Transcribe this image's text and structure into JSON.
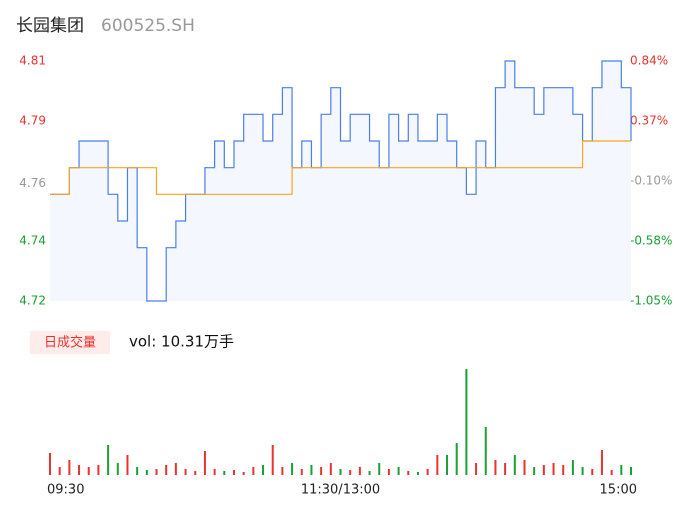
{
  "chart_data": [
    {
      "type": "line",
      "title": "长园集团",
      "subtitle": "600525.SH",
      "categories": [
        "09:30",
        null,
        null,
        null,
        null,
        null,
        null,
        null,
        null,
        null,
        null,
        null,
        null,
        null,
        null,
        null,
        null,
        null,
        null,
        null,
        null,
        null,
        null,
        null,
        null,
        null,
        null,
        null,
        null,
        null,
        "11:30/13:00",
        null,
        null,
        null,
        null,
        null,
        null,
        null,
        null,
        null,
        null,
        null,
        null,
        null,
        null,
        null,
        null,
        null,
        null,
        null,
        null,
        null,
        null,
        null,
        null,
        null,
        null,
        null,
        null,
        null,
        "15:00"
      ],
      "series": [
        {
          "color": "#4a7fe8",
          "values": [
            4.76,
            4.76,
            4.77,
            4.78,
            4.78,
            4.78,
            4.76,
            4.75,
            4.77,
            4.74,
            4.72,
            4.72,
            4.74,
            4.75,
            4.76,
            4.76,
            4.77,
            4.78,
            4.77,
            4.78,
            4.79,
            4.79,
            4.78,
            4.79,
            4.8,
            4.77,
            4.78,
            4.77,
            4.79,
            4.8,
            4.78,
            4.79,
            4.79,
            4.78,
            4.77,
            4.79,
            4.78,
            4.79,
            4.78,
            4.78,
            4.79,
            4.78,
            4.77,
            4.76,
            4.78,
            4.77,
            4.8,
            4.81,
            4.8,
            4.8,
            4.79,
            4.8,
            4.8,
            4.8,
            4.79,
            4.78,
            4.8,
            4.81,
            4.81,
            4.8,
            4.78
          ]
        },
        {
          "color": "#f5a623",
          "values": [
            4.76,
            4.76,
            4.77,
            4.77,
            4.77,
            4.77,
            4.77,
            4.77,
            4.77,
            4.77,
            4.77,
            4.76,
            4.76,
            4.76,
            4.76,
            4.76,
            4.76,
            4.76,
            4.76,
            4.76,
            4.76,
            4.76,
            4.76,
            4.76,
            4.76,
            4.77,
            4.77,
            4.77,
            4.77,
            4.77,
            4.77,
            4.77,
            4.77,
            4.77,
            4.77,
            4.77,
            4.77,
            4.77,
            4.77,
            4.77,
            4.77,
            4.77,
            4.77,
            4.77,
            4.77,
            4.77,
            4.77,
            4.77,
            4.77,
            4.77,
            4.77,
            4.77,
            4.77,
            4.77,
            4.77,
            4.78,
            4.78,
            4.78,
            4.78,
            4.78,
            4.78
          ]
        }
      ],
      "ylim": [
        4.72,
        4.81
      ],
      "yticks": [
        {
          "value": 4.81,
          "label": "4.81"
        },
        {
          "value": 4.7875,
          "label": "4.79"
        },
        {
          "value": 4.764,
          "label": "4.76"
        },
        {
          "value": 4.7425,
          "label": "4.74"
        },
        {
          "value": 4.72,
          "label": "4.72"
        }
      ],
      "y2lim": [
        -1.05,
        0.84
      ],
      "y2ticks": [
        {
          "value": 0.84,
          "label": "0.84%"
        },
        {
          "value": 0.3675,
          "label": "0.37%"
        },
        {
          "value": -0.105,
          "label": "-0.10%"
        },
        {
          "value": -0.5775,
          "label": "-0.58%"
        },
        {
          "value": -1.05,
          "label": "-1.05%"
        }
      ],
      "up_color": "#e8332f",
      "down_color": "#1aa033",
      "flat_color": "#999999",
      "area_color": "#f4f7fd",
      "grid": false
    },
    {
      "type": "bar",
      "title": "日成交量",
      "annotation": "vol: 10.31万手",
      "values": [
        2200,
        800,
        1500,
        1000,
        800,
        1000,
        3000,
        1200,
        2000,
        800,
        500,
        600,
        1000,
        1200,
        600,
        400,
        2400,
        600,
        400,
        500,
        300,
        800,
        1000,
        3000,
        800,
        1200,
        600,
        1000,
        800,
        1200,
        600,
        500,
        800,
        400,
        1200,
        600,
        800,
        400,
        300,
        600,
        2000,
        2000,
        3200,
        10600,
        1200,
        4800,
        1500,
        1200,
        2000,
        1500,
        800,
        1000,
        1200,
        1000,
        1500,
        800,
        600,
        2500,
        500,
        1000,
        800
      ],
      "ylim": [
        0,
        10600
      ]
    }
  ]
}
